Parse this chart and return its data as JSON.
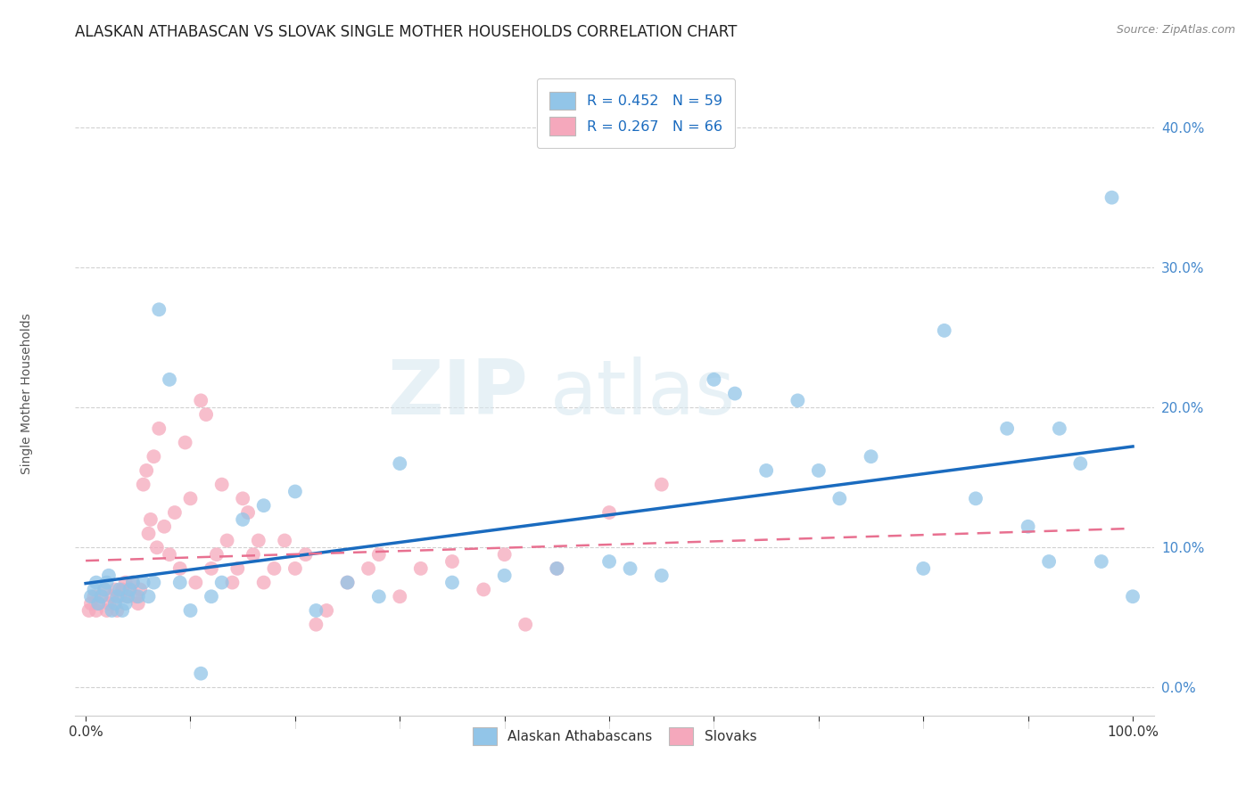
{
  "title": "ALASKAN ATHABASCAN VS SLOVAK SINGLE MOTHER HOUSEHOLDS CORRELATION CHART",
  "source": "Source: ZipAtlas.com",
  "ylabel": "Single Mother Households",
  "watermark_zip": "ZIP",
  "watermark_atlas": "atlas",
  "legend_label1": "Alaskan Athabascans",
  "legend_label2": "Slovaks",
  "r1": 0.452,
  "n1": 59,
  "r2": 0.267,
  "n2": 66,
  "color1": "#92c5e8",
  "color2": "#f5a8bc",
  "line_color1": "#1a6bbf",
  "line_color2": "#e87090",
  "background": "#ffffff",
  "grid_color": "#cccccc",
  "xlim": [
    -0.01,
    1.02
  ],
  "ylim": [
    -0.02,
    0.44
  ],
  "yticks": [
    0.0,
    0.1,
    0.2,
    0.3,
    0.4
  ],
  "athabascan_x": [
    0.005,
    0.008,
    0.01,
    0.012,
    0.015,
    0.018,
    0.02,
    0.022,
    0.025,
    0.028,
    0.03,
    0.032,
    0.035,
    0.038,
    0.04,
    0.042,
    0.045,
    0.05,
    0.055,
    0.06,
    0.065,
    0.07,
    0.08,
    0.09,
    0.1,
    0.11,
    0.12,
    0.13,
    0.15,
    0.17,
    0.2,
    0.22,
    0.25,
    0.28,
    0.3,
    0.35,
    0.4,
    0.45,
    0.5,
    0.52,
    0.55,
    0.6,
    0.62,
    0.65,
    0.68,
    0.7,
    0.72,
    0.75,
    0.8,
    0.82,
    0.85,
    0.88,
    0.9,
    0.92,
    0.93,
    0.95,
    0.97,
    0.98,
    1.0
  ],
  "athabascan_y": [
    0.065,
    0.07,
    0.075,
    0.06,
    0.065,
    0.07,
    0.075,
    0.08,
    0.055,
    0.06,
    0.065,
    0.07,
    0.055,
    0.06,
    0.065,
    0.07,
    0.075,
    0.065,
    0.075,
    0.065,
    0.075,
    0.27,
    0.22,
    0.075,
    0.055,
    0.01,
    0.065,
    0.075,
    0.12,
    0.13,
    0.14,
    0.055,
    0.075,
    0.065,
    0.16,
    0.075,
    0.08,
    0.085,
    0.09,
    0.085,
    0.08,
    0.22,
    0.21,
    0.155,
    0.205,
    0.155,
    0.135,
    0.165,
    0.085,
    0.255,
    0.135,
    0.185,
    0.115,
    0.09,
    0.185,
    0.16,
    0.09,
    0.35,
    0.065
  ],
  "slovak_x": [
    0.003,
    0.005,
    0.008,
    0.01,
    0.012,
    0.015,
    0.018,
    0.02,
    0.022,
    0.025,
    0.028,
    0.03,
    0.032,
    0.035,
    0.038,
    0.04,
    0.042,
    0.045,
    0.048,
    0.05,
    0.052,
    0.055,
    0.058,
    0.06,
    0.062,
    0.065,
    0.068,
    0.07,
    0.075,
    0.08,
    0.085,
    0.09,
    0.095,
    0.1,
    0.105,
    0.11,
    0.115,
    0.12,
    0.125,
    0.13,
    0.135,
    0.14,
    0.145,
    0.15,
    0.155,
    0.16,
    0.165,
    0.17,
    0.18,
    0.19,
    0.2,
    0.21,
    0.22,
    0.23,
    0.25,
    0.27,
    0.28,
    0.3,
    0.32,
    0.35,
    0.38,
    0.4,
    0.42,
    0.45,
    0.5,
    0.55
  ],
  "slovak_y": [
    0.055,
    0.06,
    0.065,
    0.055,
    0.06,
    0.065,
    0.07,
    0.055,
    0.06,
    0.065,
    0.07,
    0.055,
    0.065,
    0.07,
    0.075,
    0.065,
    0.07,
    0.075,
    0.065,
    0.06,
    0.07,
    0.145,
    0.155,
    0.11,
    0.12,
    0.165,
    0.1,
    0.185,
    0.115,
    0.095,
    0.125,
    0.085,
    0.175,
    0.135,
    0.075,
    0.205,
    0.195,
    0.085,
    0.095,
    0.145,
    0.105,
    0.075,
    0.085,
    0.135,
    0.125,
    0.095,
    0.105,
    0.075,
    0.085,
    0.105,
    0.085,
    0.095,
    0.045,
    0.055,
    0.075,
    0.085,
    0.095,
    0.065,
    0.085,
    0.09,
    0.07,
    0.095,
    0.045,
    0.085,
    0.125,
    0.145
  ]
}
